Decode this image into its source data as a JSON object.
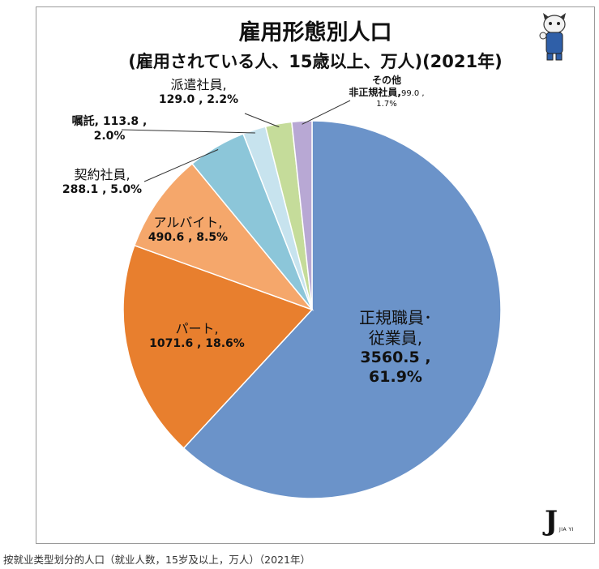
{
  "title_line1": "雇用形態別人口",
  "title_line2": "(雇用されている人、15歳以上、万人)(2021年)",
  "caption": "按就业类型划分的人口（就业人数，15岁及以上，万人）（2021年）",
  "logo_text": "J",
  "logo_sub": "JIA YI",
  "mascot_icon": "cat-mascot-icon",
  "chart_data": {
    "type": "pie",
    "start_angle_deg": 0,
    "direction": "clockwise",
    "slices": [
      {
        "name": "正規職員・従業員",
        "value": 3560.5,
        "percent": 61.9,
        "color": "#6b93c9",
        "label_line1": "正規職員･",
        "label_line2": "従業員,",
        "label_line3": "3560.5 ,",
        "label_line4": "61.9%"
      },
      {
        "name": "パート",
        "value": 1071.6,
        "percent": 18.6,
        "color": "#e87f2e",
        "label_line1": "パート,",
        "label_line2": "1071.6 , 18.6%"
      },
      {
        "name": "アルバイト",
        "value": 490.6,
        "percent": 8.5,
        "color": "#f5a76b",
        "label_line1": "アルバイト,",
        "label_line2": "490.6 , 8.5%"
      },
      {
        "name": "契約社員",
        "value": 288.1,
        "percent": 5.0,
        "color": "#8cc6d9",
        "label_line1": "契約社員,",
        "label_line2": "288.1 , 5.0%"
      },
      {
        "name": "嘱託",
        "value": 113.8,
        "percent": 2.0,
        "color": "#c7e3ee",
        "label_line1": "嘱託, 113.8 ,",
        "label_line2": "2.0%"
      },
      {
        "name": "派遣社員",
        "value": 129.0,
        "percent": 2.2,
        "color": "#c5dc9a",
        "label_line1": "派遣社員,",
        "label_line2": "129.0 , 2.2%"
      },
      {
        "name": "その他非正規社員",
        "value": 99.0,
        "percent": 1.7,
        "color": "#b8a8d4",
        "label_line1": "その他",
        "label_line2": "非正規社員,",
        "label_line2b": "99.0 ,",
        "label_line3": "1.7%"
      }
    ]
  }
}
